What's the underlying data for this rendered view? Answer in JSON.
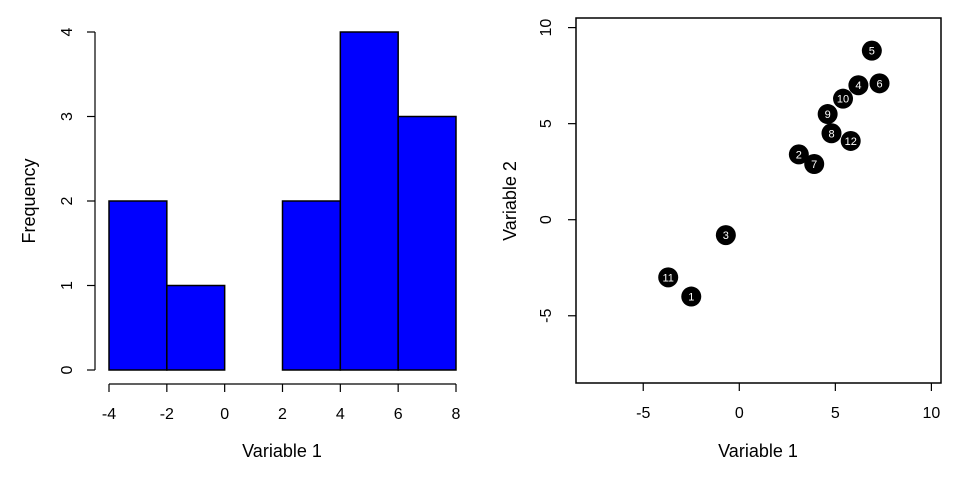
{
  "chart_data": [
    {
      "type": "bar",
      "subtype": "histogram",
      "bins": [
        [
          -4,
          -2
        ],
        [
          -2,
          0
        ],
        [
          0,
          2
        ],
        [
          2,
          4
        ],
        [
          4,
          6
        ],
        [
          6,
          8
        ]
      ],
      "values": [
        2,
        1,
        0,
        2,
        4,
        3
      ],
      "xlabel": "Variable 1",
      "ylabel": "Frequency",
      "xlim": [
        -4,
        8
      ],
      "ylim": [
        0,
        4
      ],
      "xticks": [
        -4,
        -2,
        0,
        2,
        4,
        6,
        8
      ],
      "yticks": [
        0,
        1,
        2,
        3,
        4
      ],
      "bar_color": "#0000ff",
      "grid": false
    },
    {
      "type": "scatter",
      "xlabel": "Variable 1",
      "ylabel": "Variable 2",
      "xlim": [
        -8.5,
        10.5
      ],
      "ylim": [
        -8.5,
        10.5
      ],
      "xticks": [
        -5,
        0,
        5,
        10
      ],
      "yticks": [
        -5,
        0,
        5,
        10
      ],
      "point_color": "#000000",
      "grid": false,
      "points": [
        {
          "label": "1",
          "x": -2.5,
          "y": -4.0
        },
        {
          "label": "2",
          "x": 3.1,
          "y": 3.4
        },
        {
          "label": "3",
          "x": -0.7,
          "y": -0.8
        },
        {
          "label": "4",
          "x": 6.2,
          "y": 7.0
        },
        {
          "label": "5",
          "x": 6.9,
          "y": 8.8
        },
        {
          "label": "6",
          "x": 7.3,
          "y": 7.1
        },
        {
          "label": "7",
          "x": 3.9,
          "y": 2.9
        },
        {
          "label": "8",
          "x": 4.8,
          "y": 4.5
        },
        {
          "label": "9",
          "x": 4.6,
          "y": 5.5
        },
        {
          "label": "10",
          "x": 5.4,
          "y": 6.3
        },
        {
          "label": "11",
          "x": -3.7,
          "y": -3.0
        },
        {
          "label": "12",
          "x": 5.8,
          "y": 4.1
        }
      ]
    }
  ]
}
